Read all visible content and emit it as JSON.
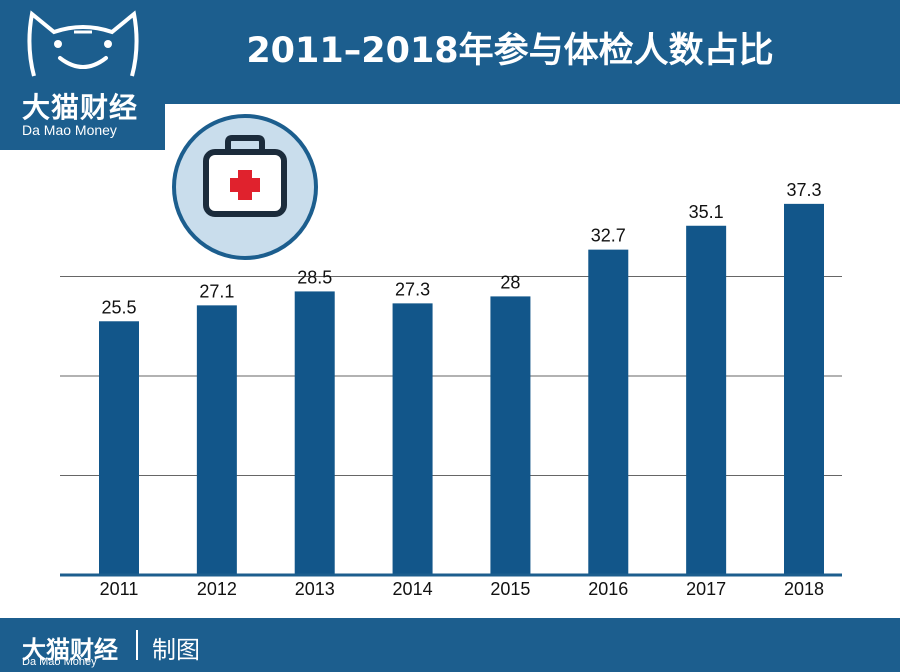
{
  "header": {
    "title": "2011–2018年参与体检人数占比"
  },
  "logo": {
    "name_cn": "大猫财经",
    "name_en": "Da Mao Money"
  },
  "footer": {
    "brand_cn": "大猫财经",
    "brand_en": "Da Mao Money",
    "credit": "制图"
  },
  "icons": {
    "logo": "cat-logo-icon",
    "badge": "medical-kit-icon"
  },
  "colors": {
    "brand": "#1c5e8e",
    "bar": "#12568a",
    "badge_fill": "#c9ddec",
    "cross": "#e0222d"
  },
  "chart_data": {
    "type": "bar",
    "title": "2011–2018年参与体检人数占比",
    "categories": [
      "2011",
      "2012",
      "2013",
      "2014",
      "2015",
      "2016",
      "2017",
      "2018"
    ],
    "values": [
      25.5,
      27.1,
      28.5,
      27.3,
      28,
      32.7,
      35.1,
      37.3
    ],
    "value_labels": [
      "25.5",
      "27.1",
      "28.5",
      "27.3",
      "28",
      "32.7",
      "35.1",
      "37.3"
    ],
    "ylim": [
      0,
      40
    ],
    "grid": true,
    "legend": "none"
  }
}
